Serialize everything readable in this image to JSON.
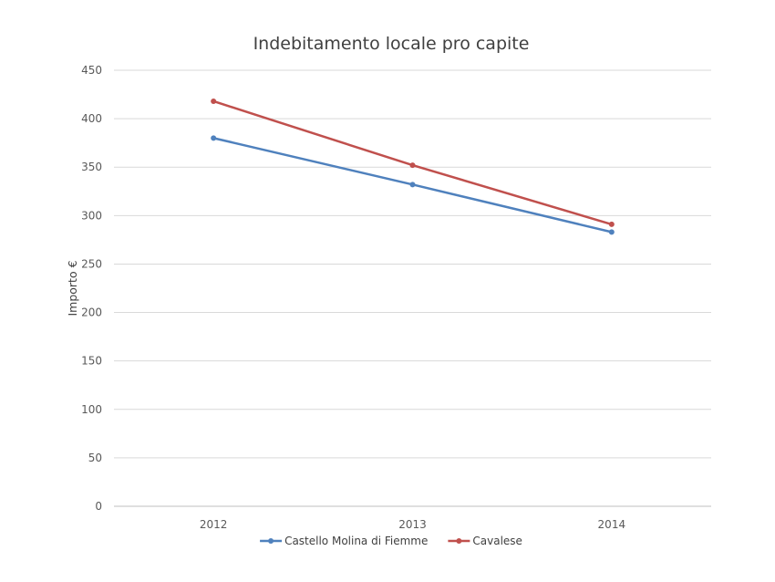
{
  "chart_data": {
    "type": "line",
    "title": "Indebitamento locale pro capite",
    "xlabel": "",
    "ylabel": "Importo €",
    "categories": [
      "2012",
      "2013",
      "2014"
    ],
    "ylim": [
      0,
      450
    ],
    "yticks": [
      0,
      50,
      100,
      150,
      200,
      250,
      300,
      350,
      400,
      450
    ],
    "grid": true,
    "legend": "bottom",
    "series": [
      {
        "name": "Castello Molina di Fiemme",
        "values": [
          380,
          332,
          283
        ],
        "color": "#4f81bd"
      },
      {
        "name": "Cavalese",
        "values": [
          418,
          352,
          291
        ],
        "color": "#c0504d"
      }
    ]
  }
}
